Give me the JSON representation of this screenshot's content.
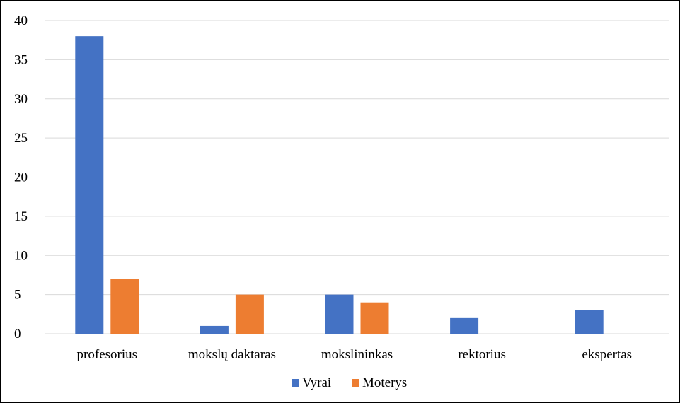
{
  "chart_data": {
    "type": "bar",
    "title": "",
    "xlabel": "",
    "ylabel": "",
    "categories": [
      "profesorius",
      "mokslų daktaras",
      "mokslininkas",
      "rektorius",
      "ekspertas"
    ],
    "series": [
      {
        "name": "Vyrai",
        "values": [
          38,
          1,
          5,
          2,
          3
        ],
        "color": "#4472C4"
      },
      {
        "name": "Moterys",
        "values": [
          7,
          5,
          4,
          0,
          0
        ],
        "color": "#ED7D31"
      }
    ],
    "ylim": [
      0,
      40
    ],
    "yticks": [
      0,
      5,
      10,
      15,
      20,
      25,
      30,
      35,
      40
    ],
    "grid": true,
    "legend_position": "bottom",
    "gridline_color": "#D9D9D9"
  }
}
